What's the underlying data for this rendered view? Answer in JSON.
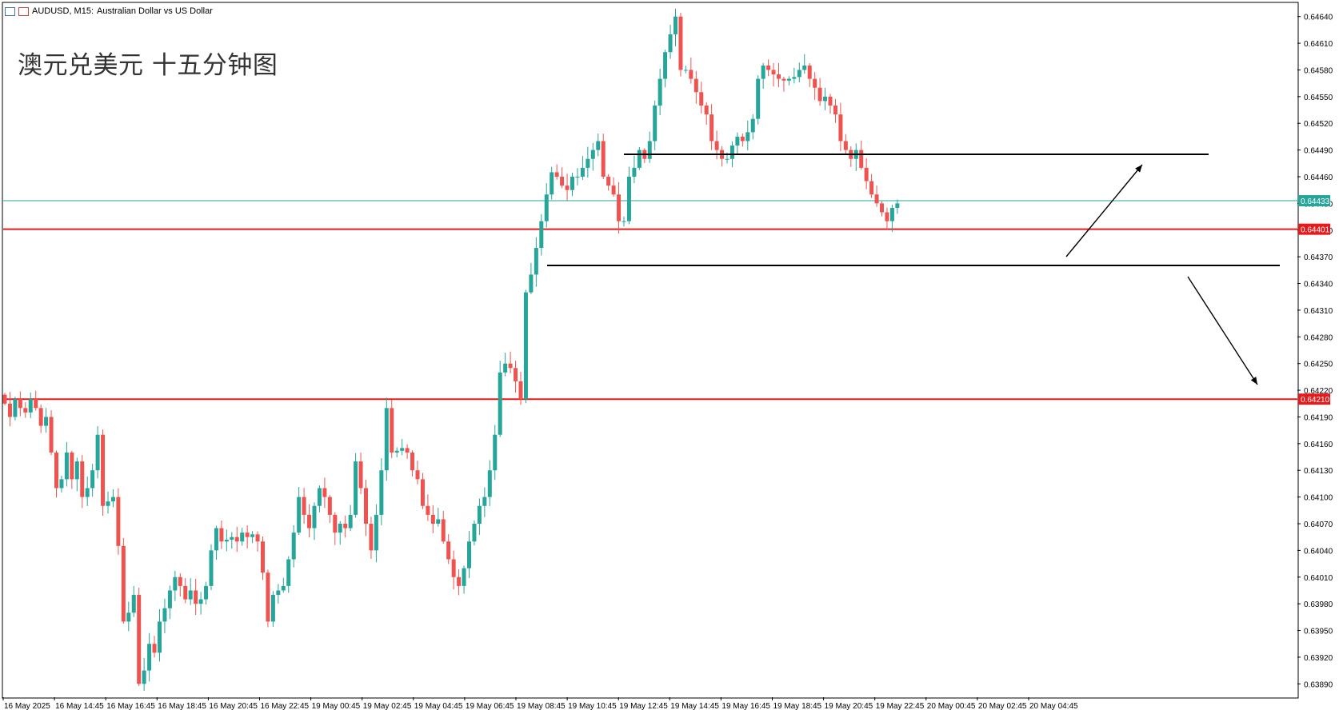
{
  "header": {
    "symbol": "AUDUSD, M15:",
    "description": "Australian Dollar vs US Dollar"
  },
  "annotation": "澳元兑美元 十五分钟图",
  "colors": {
    "bull": "#26a69a",
    "bear": "#ef5350",
    "support_resistance": "#e41a1c",
    "trendline": "#000000",
    "bid_line": "#26a69a"
  },
  "chart_data": {
    "type": "candlestick",
    "symbol": "AUDUSD",
    "timeframe": "M15",
    "ylim": [
      0.63875,
      0.64655
    ],
    "y_ticks": [
      "0.64640",
      "0.64610",
      "0.64580",
      "0.64550",
      "0.64520",
      "0.64490",
      "0.64460",
      "0.64430",
      "0.64400",
      "0.64370",
      "0.64340",
      "0.64310",
      "0.64280",
      "0.64250",
      "0.64220",
      "0.64190",
      "0.64160",
      "0.64130",
      "0.64100",
      "0.64070",
      "0.64040",
      "0.64010",
      "0.63980",
      "0.63950",
      "0.63920",
      "0.63890"
    ],
    "x_labels": [
      "16 May 2025",
      "16 May 14:45",
      "16 May 16:45",
      "16 May 18:45",
      "16 May 20:45",
      "16 May 22:45",
      "19 May 00:45",
      "19 May 02:45",
      "19 May 04:45",
      "19 May 06:45",
      "19 May 08:45",
      "19 May 10:45",
      "19 May 12:45",
      "19 May 14:45",
      "19 May 16:45",
      "19 May 18:45",
      "19 May 20:45",
      "19 May 22:45",
      "20 May 00:45",
      "20 May 02:45",
      "20 May 04:45"
    ],
    "price_labels": [
      {
        "value": 0.64433,
        "text": "0.64433",
        "kind": "bid"
      },
      {
        "value": 0.64401,
        "text": "0.64401",
        "kind": "level"
      },
      {
        "value": 0.6421,
        "text": "0.64210",
        "kind": "level"
      }
    ],
    "horizontal_levels": [
      {
        "price": 0.64401,
        "label": "0.64401"
      },
      {
        "price": 0.6421,
        "label": "0.64210"
      }
    ],
    "bid_price": 0.64433,
    "close_series": [
      0.64205,
      0.6419,
      0.6421,
      0.642,
      0.64195,
      0.6421,
      0.642,
      0.6418,
      0.6419,
      0.6415,
      0.6411,
      0.6412,
      0.6415,
      0.6412,
      0.6414,
      0.641,
      0.6411,
      0.6413,
      0.6417,
      0.6409,
      0.64095,
      0.641,
      0.64045,
      0.6396,
      0.6397,
      0.6399,
      0.6389,
      0.63905,
      0.63935,
      0.63925,
      0.6396,
      0.63975,
      0.63995,
      0.6401,
      0.64,
      0.63985,
      0.63995,
      0.6398,
      0.63985,
      0.64,
      0.6404,
      0.64065,
      0.6405,
      0.64052,
      0.64055,
      0.6405,
      0.6406,
      0.64055,
      0.64058,
      0.6405,
      0.64015,
      0.6396,
      0.6399,
      0.63995,
      0.64,
      0.6403,
      0.6406,
      0.641,
      0.6408,
      0.64065,
      0.6409,
      0.6411,
      0.641,
      0.6408,
      0.6406,
      0.6407,
      0.64065,
      0.6408,
      0.6414,
      0.6411,
      0.6407,
      0.6404,
      0.6408,
      0.6413,
      0.642,
      0.6415,
      0.64152,
      0.64155,
      0.6415,
      0.6413,
      0.6412,
      0.6409,
      0.6408,
      0.6407,
      0.64075,
      0.6405,
      0.6403,
      0.6401,
      0.64,
      0.6402,
      0.6405,
      0.6407,
      0.6409,
      0.641,
      0.6413,
      0.6417,
      0.6424,
      0.6425,
      0.64245,
      0.6423,
      0.6421,
      0.6433,
      0.6435,
      0.6438,
      0.6441,
      0.6444,
      0.64465,
      0.6446,
      0.6445,
      0.64445,
      0.6446,
      0.6446,
      0.6447,
      0.6448,
      0.6449,
      0.645,
      0.6446,
      0.6445,
      0.6444,
      0.6441,
      0.6441,
      0.6446,
      0.6447,
      0.6449,
      0.6448,
      0.645,
      0.6454,
      0.6457,
      0.646,
      0.6462,
      0.6464,
      0.6458,
      0.6458,
      0.6457,
      0.64555,
      0.6454,
      0.6453,
      0.645,
      0.6449,
      0.6448,
      0.6448,
      0.64495,
      0.64505,
      0.645,
      0.6451,
      0.64525,
      0.6457,
      0.64585,
      0.6458,
      0.64575,
      0.6457,
      0.64568,
      0.6457,
      0.64572,
      0.6458,
      0.64585,
      0.6457,
      0.6456,
      0.64545,
      0.6455,
      0.6454,
      0.6453,
      0.645,
      0.6449,
      0.6448,
      0.6449,
      0.6447,
      0.64455,
      0.6444,
      0.6443,
      0.6442,
      0.6441,
      0.64425,
      0.6443
    ]
  }
}
